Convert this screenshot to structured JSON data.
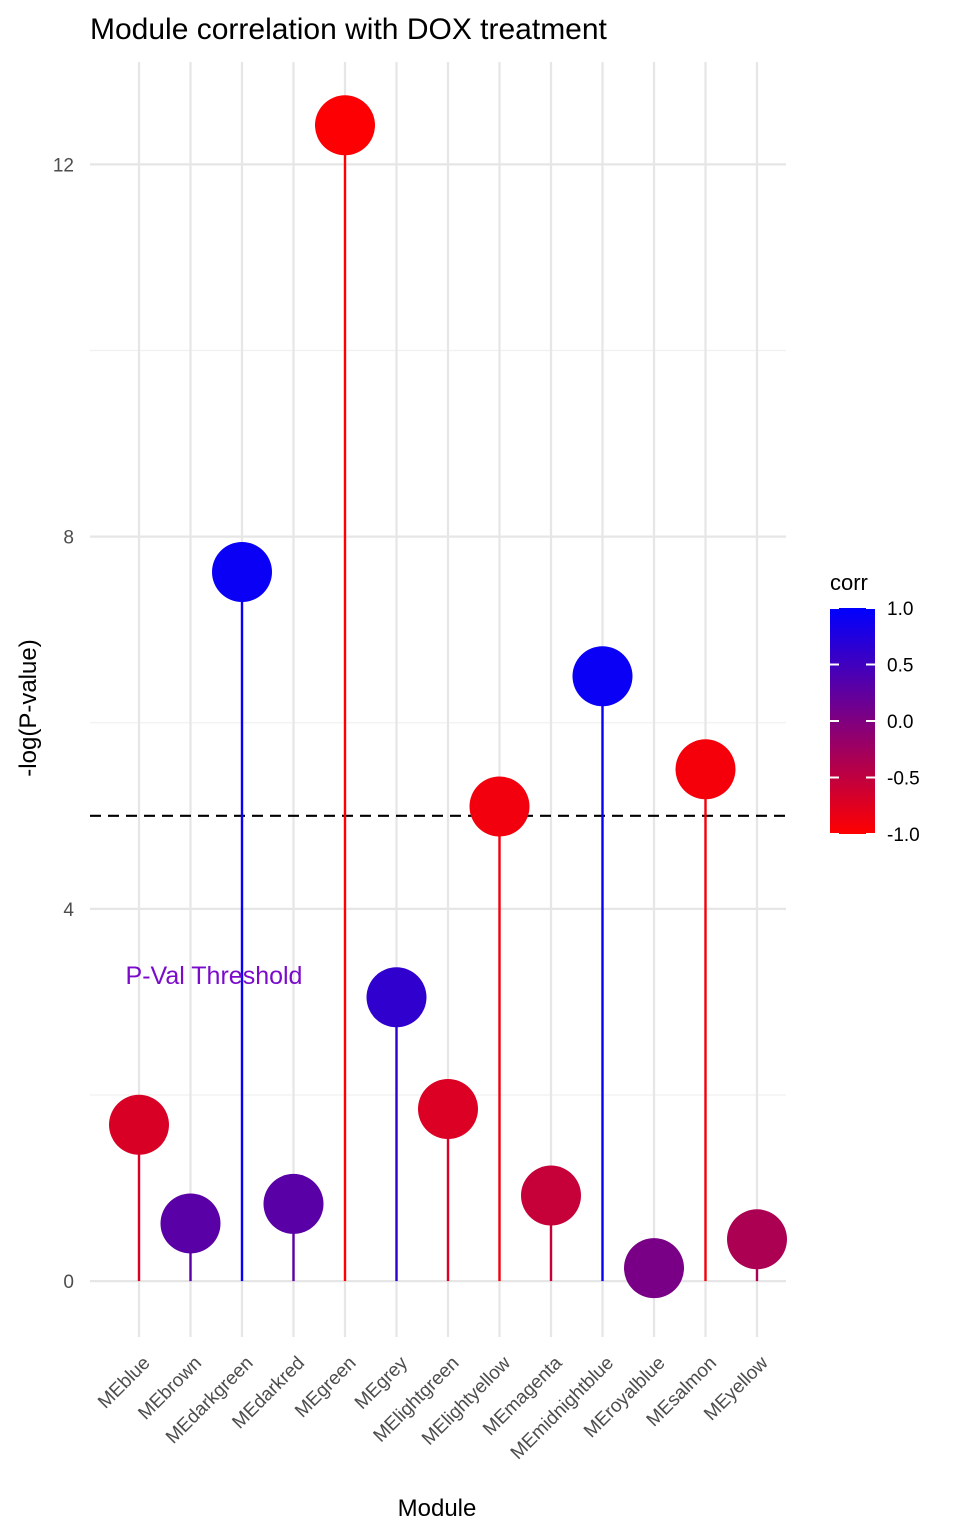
{
  "chart_data": {
    "type": "lollipop",
    "title": "Module correlation with DOX treatment",
    "xlabel": "Module",
    "ylabel": "-log(P-value)",
    "ylim": [
      -0.6,
      13.1
    ],
    "y_ticks": [
      0,
      4,
      8,
      12
    ],
    "y_tick_labels": [
      "0",
      "4",
      "8",
      "12"
    ],
    "grid": true,
    "threshold": {
      "y": 5.0,
      "label": "P-Val Threshold",
      "label_color": "#7B0BCB",
      "line_style": "dashed"
    },
    "color_low": "#FF0000",
    "color_high": "#0000FF",
    "legend": {
      "title": "corr",
      "position": "right",
      "breaks": [
        1.0,
        0.5,
        0.0,
        -0.5,
        -1.0
      ],
      "labels": [
        "1.0",
        "0.5",
        "0.0",
        "-0.5",
        "-1.0"
      ]
    },
    "categories": [
      "MEblue",
      "MEbrown",
      "MEdarkgreen",
      "MEdarkred",
      "MEgreen",
      "MEgrey",
      "MElightgreen",
      "MElightyellow",
      "MEmagenta",
      "MEmidnightblue",
      "MEroyalblue",
      "MEsalmon",
      "MEyellow"
    ],
    "values": [
      1.68,
      0.62,
      7.62,
      0.83,
      12.42,
      3.05,
      1.85,
      5.1,
      0.92,
      6.5,
      0.14,
      5.5,
      0.45
    ],
    "corr": [
      -0.7,
      0.3,
      0.92,
      0.3,
      -0.98,
      0.62,
      -0.72,
      -0.9,
      -0.55,
      0.92,
      0.05,
      -0.92,
      -0.35
    ]
  }
}
